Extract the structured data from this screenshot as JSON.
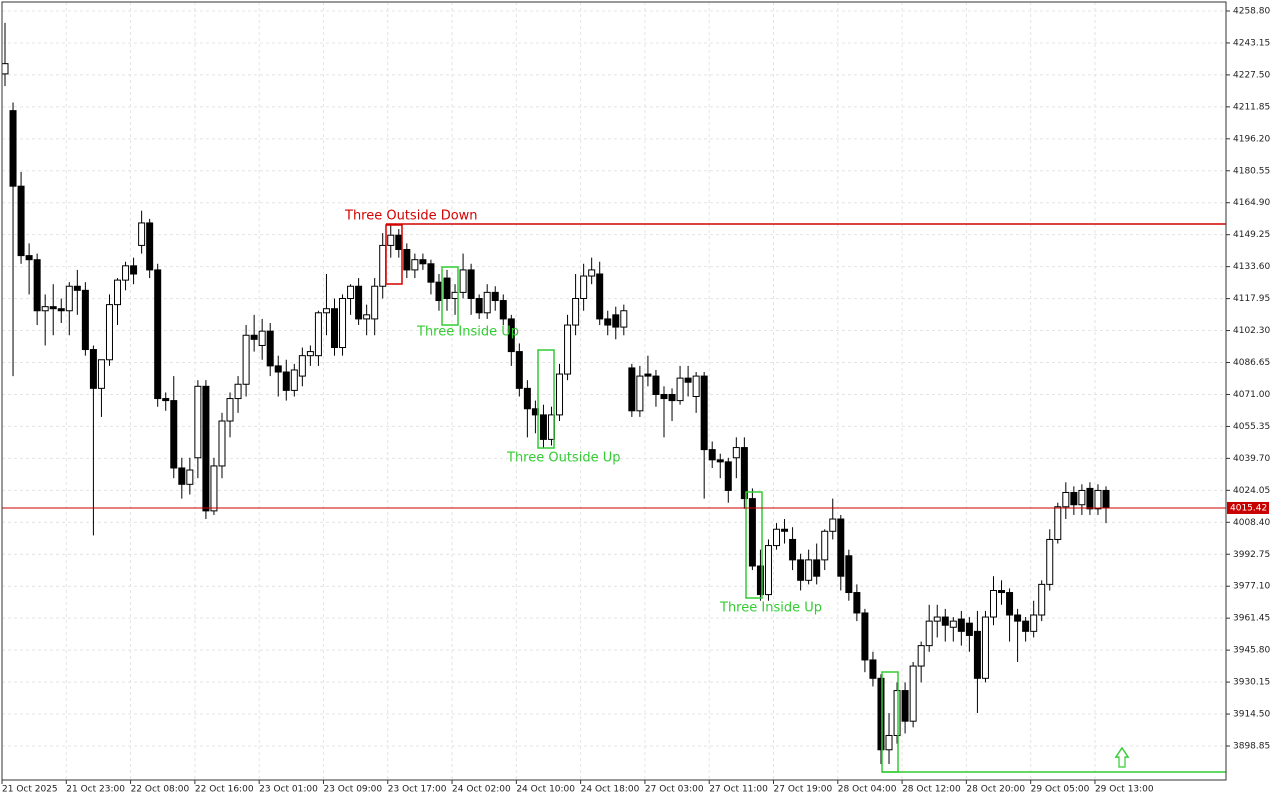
{
  "chart_data": {
    "type": "candlestick",
    "categories": [
      "21 Oct 2025",
      null,
      null,
      null,
      null,
      null,
      null,
      null,
      "21 Oct 23:00",
      null,
      null,
      null,
      null,
      null,
      null,
      null,
      "22 Oct 08:00",
      null,
      null,
      null,
      null,
      null,
      null,
      null,
      "22 Oct 16:00",
      null,
      null,
      null,
      null,
      null,
      null,
      null,
      "23 Oct 01:00",
      null,
      null,
      null,
      null,
      null,
      null,
      null,
      "23 Oct 09:00",
      null,
      null,
      null,
      null,
      null,
      null,
      null,
      "23 Oct 17:00",
      null,
      null,
      null,
      null,
      null,
      null,
      null,
      "24 Oct 02:00",
      null,
      null,
      null,
      null,
      null,
      null,
      null,
      "24 Oct 10:00",
      null,
      null,
      null,
      null,
      null,
      null,
      null,
      "24 Oct 18:00",
      null,
      null,
      null,
      null,
      null,
      null,
      null,
      "27 Oct 03:00",
      null,
      null,
      null,
      null,
      null,
      null,
      null,
      "27 Oct 11:00",
      null,
      null,
      null,
      null,
      null,
      null,
      null,
      "27 Oct 19:00",
      null,
      null,
      null,
      null,
      null,
      null,
      null,
      "28 Oct 04:00",
      null,
      null,
      null,
      null,
      null,
      null,
      null,
      "28 Oct 12:00",
      null,
      null,
      null,
      null,
      null,
      null,
      null,
      "28 Oct 20:00",
      null,
      null,
      null,
      null,
      null,
      null,
      null,
      "29 Oct 05:00",
      null,
      null,
      null,
      null,
      null,
      null,
      null,
      "29 Oct 13:00",
      null
    ],
    "open": [
      4228,
      4210,
      4173,
      4139,
      4137,
      4112,
      4114,
      4113,
      4112,
      4124,
      4122,
      4093,
      4074,
      4088,
      4115,
      4127,
      4134,
      4144,
      4155,
      4132,
      4069,
      4068,
      4035,
      4027,
      4040,
      4075,
      4014,
      4036,
      4058,
      4069,
      4076,
      4100,
      4095,
      4102,
      4085,
      4082,
      4073,
      4080,
      4090,
      4090,
      4111,
      4113,
      4094,
      4118,
      4124,
      4108,
      4108,
      4124,
      4144,
      4149,
      4142,
      4132,
      4137,
      4135,
      4126,
      4128,
      4118,
      4121,
      4132,
      4118,
      4111,
      4121,
      4117,
      4108,
      4092,
      4074,
      4064,
      4061,
      4049,
      4061,
      4081,
      4105,
      4118,
      4129,
      4130,
      4108,
      4110,
      4104,
      4084,
      4063,
      4081,
      4080,
      4071,
      4071,
      4068,
      4079,
      4070,
      4080,
      4044,
      4039,
      4038,
      4040,
      4045,
      4020,
      3987,
      3973,
      3997,
      4005,
      4000,
      3990,
      3980,
      3990,
      3990,
      4004,
      4010,
      3992,
      3974,
      3964,
      3941,
      3932,
      3897,
      3904,
      3926,
      3911,
      3938,
      3948,
      3960,
      3962,
      3957,
      3961,
      3959,
      3955,
      3932,
      3962,
      3975,
      3974,
      3963,
      3960,
      3955,
      3963,
      3978,
      4000,
      4016,
      4023,
      4017,
      4025,
      4015,
      4024
    ],
    "high": [
      4253,
      4214,
      4180,
      4145,
      4140,
      4120,
      4125,
      4118,
      4126,
      4132,
      4126,
      4095,
      4088,
      4120,
      4128,
      4136,
      4138,
      4161,
      4157,
      4135,
      4072,
      4080,
      4040,
      4040,
      4078,
      4078,
      4040,
      4062,
      4072,
      4080,
      4105,
      4110,
      4108,
      4106,
      4090,
      4088,
      4086,
      4094,
      4095,
      4112,
      4130,
      4118,
      4120,
      4125,
      4128,
      4115,
      4128,
      4150,
      4154,
      4152,
      4145,
      4140,
      4140,
      4137,
      4130,
      4132,
      4125,
      4140,
      4135,
      4120,
      4125,
      4124,
      4120,
      4110,
      4096,
      4078,
      4068,
      4066,
      4065,
      4086,
      4110,
      4130,
      4135,
      4138,
      4136,
      4112,
      4114,
      4115,
      4086,
      4085,
      4090,
      4083,
      4075,
      4074,
      4085,
      4085,
      4082,
      4082,
      4048,
      4042,
      4040,
      4050,
      4050,
      4025,
      3995,
      4000,
      4008,
      4010,
      4006,
      3993,
      3995,
      3998,
      4005,
      4020,
      4012,
      3995,
      3978,
      3966,
      3945,
      3934,
      3915,
      3930,
      3930,
      3940,
      3950,
      3968,
      3968,
      3966,
      3962,
      3965,
      3962,
      3965,
      3965,
      3982,
      3980,
      3976,
      3966,
      3962,
      3970,
      3980,
      4005,
      4018,
      4028,
      4026,
      4027,
      4028,
      4027,
      4026
    ],
    "low": [
      4222,
      4080,
      4135,
      4120,
      4105,
      4095,
      4100,
      4106,
      4100,
      4110,
      4090,
      4002,
      4060,
      4085,
      4105,
      4122,
      4125,
      4140,
      4128,
      4065,
      4063,
      4030,
      4020,
      4022,
      4030,
      4010,
      4012,
      4030,
      4050,
      4062,
      4070,
      4092,
      4088,
      4080,
      4070,
      4068,
      4070,
      4075,
      4085,
      4085,
      4100,
      4090,
      4090,
      4110,
      4105,
      4100,
      4100,
      4118,
      4138,
      4138,
      4128,
      4128,
      4132,
      4120,
      4112,
      4112,
      4110,
      4118,
      4110,
      4108,
      4108,
      4112,
      4105,
      4085,
      4070,
      4050,
      4052,
      4045,
      4046,
      4058,
      4078,
      4100,
      4112,
      4125,
      4105,
      4100,
      4098,
      4100,
      4060,
      4060,
      4075,
      4065,
      4050,
      4058,
      4066,
      4070,
      4062,
      4020,
      4035,
      4030,
      4018,
      4030,
      4015,
      3985,
      3970,
      3970,
      3995,
      3998,
      3985,
      3975,
      3978,
      3978,
      3985,
      4000,
      3975,
      3970,
      3960,
      3935,
      3928,
      3890,
      3890,
      3900,
      3905,
      3908,
      3930,
      3945,
      3952,
      3950,
      3950,
      3948,
      3945,
      3915,
      3930,
      3958,
      3968,
      3950,
      3940,
      3950,
      3952,
      3960,
      3975,
      3998,
      4010,
      4012,
      4012,
      4012,
      4012,
      4008
    ],
    "close": [
      4233,
      4173,
      4139,
      4137,
      4112,
      4114,
      4113,
      4112,
      4124,
      4122,
      4093,
      4074,
      4088,
      4115,
      4127,
      4134,
      4130,
      4155,
      4132,
      4069,
      4068,
      4035,
      4027,
      4034,
      4075,
      4014,
      4036,
      4058,
      4069,
      4076,
      4100,
      4098,
      4102,
      4085,
      4082,
      4073,
      4083,
      4090,
      4092,
      4111,
      4113,
      4094,
      4118,
      4124,
      4108,
      4110,
      4124,
      4144,
      4149,
      4142,
      4132,
      4137,
      4135,
      4126,
      4117,
      4118,
      4121,
      4132,
      4118,
      4111,
      4121,
      4117,
      4108,
      4092,
      4074,
      4064,
      4061,
      4049,
      4061,
      4081,
      4105,
      4118,
      4129,
      4132,
      4108,
      4105,
      4104,
      4112,
      4063,
      4080,
      4080,
      4071,
      4069,
      4068,
      4079,
      4077,
      4080,
      4044,
      4039,
      4038,
      4024,
      4045,
      4020,
      3987,
      3973,
      3997,
      4005,
      4004,
      3990,
      3980,
      3990,
      3982,
      4004,
      4010,
      3982,
      3974,
      3964,
      3941,
      3932,
      3897,
      3904,
      3926,
      3911,
      3938,
      3948,
      3960,
      3962,
      3958,
      3960,
      3955,
      3953,
      3932,
      3962,
      3975,
      3974,
      3963,
      3960,
      3955,
      3963,
      3978,
      4000,
      4016,
      4023,
      4017,
      4024,
      4015,
      4024,
      4015.42
    ],
    "up_color": "#ffffff",
    "down_color": "#000000",
    "ylim": [
      3882.2,
      4263.2
    ],
    "yticks": [
      {
        "value": 4258.8,
        "label": "4258.80"
      },
      {
        "value": 4243.15,
        "label": "4243.15"
      },
      {
        "value": 4227.5,
        "label": "4227.50"
      },
      {
        "value": 4211.85,
        "label": "4211.85"
      },
      {
        "value": 4196.2,
        "label": "4196.20"
      },
      {
        "value": 4180.55,
        "label": "4180.55"
      },
      {
        "value": 4164.9,
        "label": "4164.90"
      },
      {
        "value": 4149.25,
        "label": "4149.25"
      },
      {
        "value": 4133.6,
        "label": "4133.60"
      },
      {
        "value": 4117.95,
        "label": "4117.95"
      },
      {
        "value": 4102.3,
        "label": "4102.30"
      },
      {
        "value": 4086.65,
        "label": "4086.65"
      },
      {
        "value": 4071,
        "label": "4071.00"
      },
      {
        "value": 4055.35,
        "label": "4055.35"
      },
      {
        "value": 4039.7,
        "label": "4039.70"
      },
      {
        "value": 4024.05,
        "label": "4024.05"
      },
      {
        "value": 4008.4,
        "label": "4008.40"
      },
      {
        "value": 3992.75,
        "label": "3992.75"
      },
      {
        "value": 3977.1,
        "label": "3977.10"
      },
      {
        "value": 3961.45,
        "label": "3961.45"
      },
      {
        "value": 3945.8,
        "label": "3945.80"
      },
      {
        "value": 3930.15,
        "label": "3930.15"
      },
      {
        "value": 3914.5,
        "label": "3914.50"
      },
      {
        "value": 3898.85,
        "label": "3898.85"
      }
    ],
    "grid": true,
    "current_price": 4015.42,
    "current_price_color": "#c80000",
    "levels": [
      {
        "value": 4154.5,
        "color": "#d40000"
      },
      {
        "value": 3886.1,
        "color": "#33cc33"
      }
    ],
    "patterns": [
      {
        "text": "Three Outside Down",
        "color": "#d40000"
      },
      {
        "text": "Three Inside Up",
        "color": "#33cc33"
      },
      {
        "text": "Three Outside Up",
        "color": "#33cc33"
      },
      {
        "text": "Three Inside Up",
        "color": "#33cc33"
      }
    ]
  }
}
